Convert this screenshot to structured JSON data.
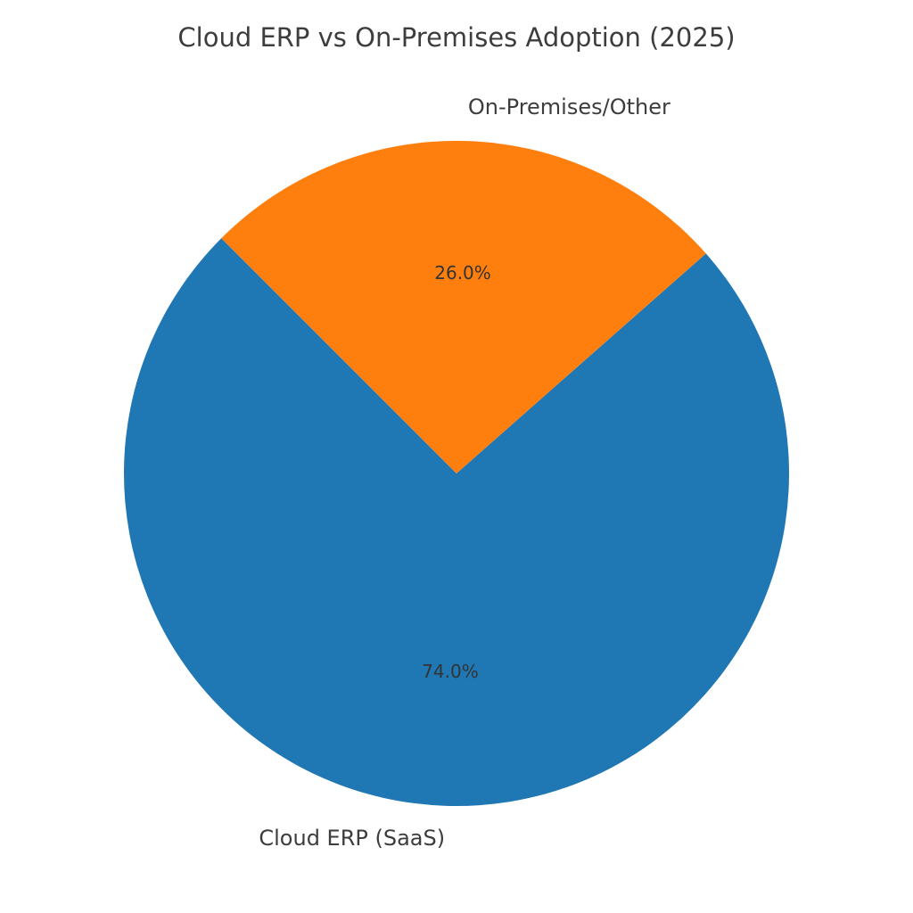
{
  "chart_data": {
    "type": "pie",
    "title": "Cloud ERP vs On-Premises Adoption (2025)",
    "slices": [
      {
        "label": "Cloud ERP (SaaS)",
        "value": 74.0,
        "pct_label": "74.0%",
        "color": "#1f77b4"
      },
      {
        "label": "On-Premises/Other",
        "value": 26.0,
        "pct_label": "26.0%",
        "color": "#ff7f0e"
      }
    ]
  }
}
